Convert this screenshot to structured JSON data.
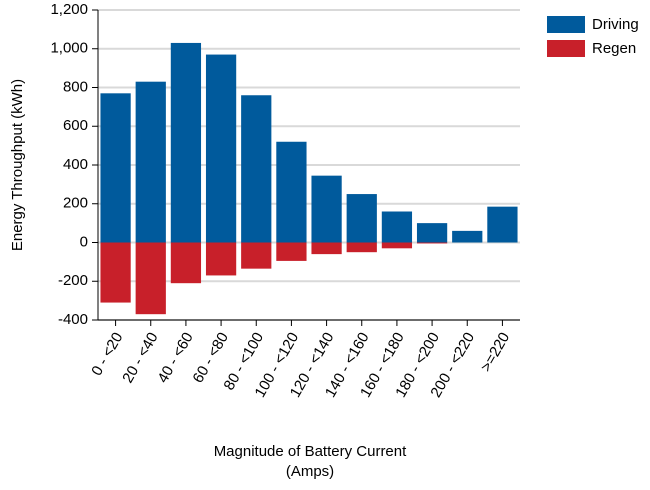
{
  "chart_data": {
    "type": "bar",
    "y_label": "Energy Throughput (kWh)",
    "x_label": [
      "Magnitude of Battery Current",
      "(Amps)"
    ],
    "categories": [
      "0 - <20",
      "20 - <40",
      "40 - <60",
      "60 - <80",
      "80 - <100",
      "100 - <120",
      "120 - <140",
      "140 - <160",
      "160 - <180",
      "180 - <200",
      "200 - <220",
      ">=220"
    ],
    "series": [
      {
        "name": "Driving",
        "color": "#005a9c",
        "values": [
          770,
          830,
          1030,
          970,
          760,
          520,
          345,
          250,
          160,
          100,
          60,
          185
        ]
      },
      {
        "name": "Regen",
        "color": "#c8202a",
        "values": [
          -310,
          -370,
          -210,
          -170,
          -135,
          -95,
          -60,
          -50,
          -30,
          -5,
          0,
          0
        ]
      }
    ],
    "ylim": [
      -400,
      1200
    ],
    "yticks": [
      -400,
      -200,
      0,
      200,
      400,
      600,
      800,
      {
        "value": 1000,
        "label": "1,000"
      },
      {
        "value": 1200,
        "label": "1,200"
      }
    ],
    "grid": true,
    "legend": "top-right"
  }
}
